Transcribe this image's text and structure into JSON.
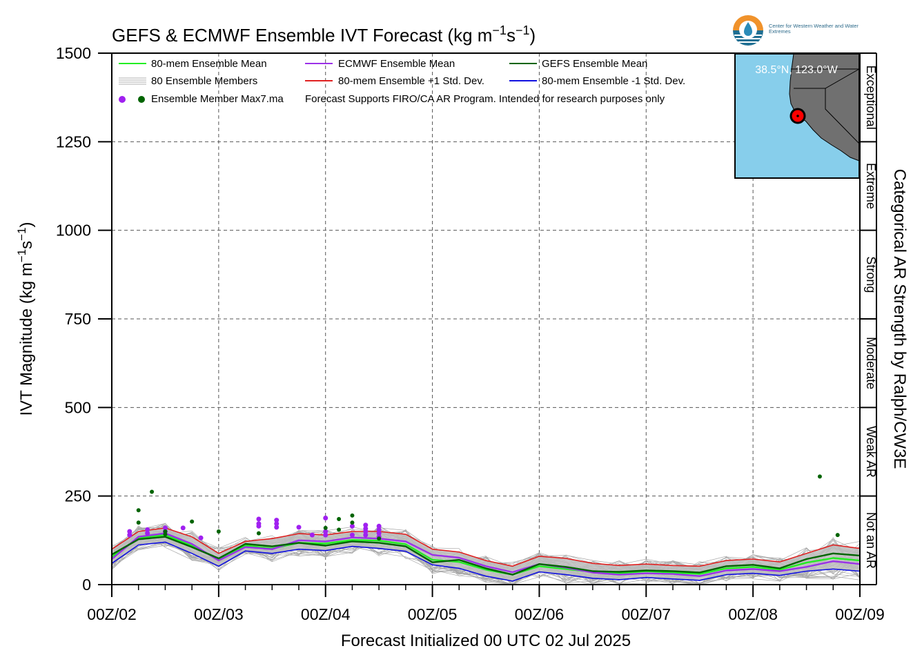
{
  "title_main": "GEFS & ECMWF Ensemble IVT Forecast (kg m",
  "title_sup1": "−1",
  "title_mid": "s",
  "title_sup2": "−1",
  "title_end": ")",
  "ylabel_main": "IVT Magnitude (kg m",
  "ylabel_sup1": "−1",
  "ylabel_mid": "s",
  "ylabel_sup2": "−1",
  "ylabel_end": ")",
  "xlabel": "Forecast Initialized 00 UTC 02 Jul 2025",
  "right_title": "Categorical AR Strength by Ralph/CW3E",
  "logo_org": "Center for Western Weather and Water Extremes",
  "inset": {
    "label": "38.5°N, 123.0°W",
    "colors": {
      "ocean": "#87ceeb",
      "land": "#707070",
      "marker": "#ff0000"
    }
  },
  "legend": {
    "ens_mean": "80-mem Ensemble Mean",
    "ecmwf_mean": "ECMWF Ensemble Mean",
    "gefs_mean": "GEFS Ensemble Mean",
    "members": "80 Ensemble Members",
    "plus_sd": "80-mem Ensemble +1 Std. Dev.",
    "minus_sd": "80-mem Ensemble -1 Std. Dev.",
    "max_label": "Ensemble Member Max7.ma",
    "note": "Forecast Supports FIRO/CA AR Program. Intended for research purposes only"
  },
  "categories": [
    "Not an AR",
    "Weak AR",
    "Moderate",
    "Strong",
    "Extreme",
    "Exceptional"
  ],
  "chart_data": {
    "type": "line",
    "title": "GEFS & ECMWF Ensemble IVT Forecast (kg m−1s−1)",
    "xlabel": "Forecast Initialized 00 UTC 02 Jul 2025",
    "ylabel": "IVT Magnitude (kg m−1s−1)",
    "ylim": [
      0,
      1500
    ],
    "yticks": [
      0,
      250,
      500,
      750,
      1000,
      1250,
      1500
    ],
    "xlim": [
      0,
      168
    ],
    "xticks": [
      0,
      24,
      48,
      72,
      96,
      120,
      144,
      168
    ],
    "xtick_labels": [
      "00Z/02",
      "00Z/03",
      "00Z/04",
      "00Z/05",
      "00Z/06",
      "00Z/07",
      "00Z/08",
      "00Z/09"
    ],
    "grid": true,
    "legend_position": "top-left",
    "colors": {
      "ens_mean": "#22ee22",
      "ecmwf_mean": "#9b30e8",
      "gefs_mean": "#006400",
      "plus_sd": "#e02020",
      "minus_sd": "#1010e0",
      "members": "#a8a8a8",
      "spread": "#bdbdbd",
      "ecmwf_max": "#a020f0",
      "gefs_max": "#006400"
    },
    "x": [
      0,
      6,
      12,
      18,
      24,
      30,
      36,
      42,
      48,
      54,
      60,
      66,
      72,
      78,
      84,
      90,
      96,
      102,
      108,
      114,
      120,
      126,
      132,
      138,
      144,
      150,
      156,
      162,
      168
    ],
    "series": [
      {
        "name": "80-mem Ensemble Mean",
        "key": "ens_mean",
        "values": [
          78,
          132,
          140,
          110,
          72,
          110,
          102,
          118,
          116,
          126,
          124,
          114,
          70,
          64,
          42,
          28,
          52,
          44,
          36,
          32,
          38,
          34,
          30,
          46,
          50,
          42,
          62,
          75,
          68
        ]
      },
      {
        "name": "ECMWF Ensemble Mean",
        "key": "ecmwf_mean",
        "values": [
          72,
          135,
          145,
          115,
          68,
          106,
          100,
          125,
          122,
          133,
          130,
          122,
          84,
          76,
          52,
          35,
          58,
          48,
          34,
          28,
          32,
          30,
          24,
          40,
          44,
          38,
          50,
          66,
          58
        ]
      },
      {
        "name": "GEFS Ensemble Mean",
        "key": "gefs_mean",
        "values": [
          85,
          128,
          135,
          106,
          74,
          115,
          108,
          118,
          110,
          122,
          118,
          108,
          63,
          70,
          46,
          28,
          58,
          50,
          38,
          36,
          40,
          38,
          34,
          52,
          56,
          46,
          72,
          88,
          82
        ]
      },
      {
        "name": "80-mem Ensemble +1 Std. Dev.",
        "key": "plus_sd",
        "values": [
          100,
          150,
          160,
          135,
          88,
          122,
          130,
          144,
          140,
          150,
          150,
          142,
          100,
          92,
          68,
          52,
          80,
          74,
          60,
          54,
          58,
          54,
          52,
          68,
          72,
          64,
          88,
          112,
          102
        ]
      },
      {
        "name": "80-mem Ensemble -1 Std. Dev.",
        "key": "minus_sd",
        "values": [
          60,
          112,
          120,
          88,
          52,
          95,
          88,
          100,
          96,
          108,
          102,
          94,
          56,
          46,
          24,
          10,
          36,
          28,
          18,
          14,
          20,
          16,
          12,
          28,
          32,
          26,
          38,
          44,
          38
        ]
      }
    ],
    "ecmwf_max_points": [
      {
        "x": 4,
        "y": 140
      },
      {
        "x": 4,
        "y": 150
      },
      {
        "x": 8,
        "y": 145
      },
      {
        "x": 8,
        "y": 155
      },
      {
        "x": 12,
        "y": 150
      },
      {
        "x": 12,
        "y": 160
      },
      {
        "x": 16,
        "y": 160
      },
      {
        "x": 20,
        "y": 132
      },
      {
        "x": 33,
        "y": 185
      },
      {
        "x": 33,
        "y": 172
      },
      {
        "x": 33,
        "y": 165
      },
      {
        "x": 37,
        "y": 182
      },
      {
        "x": 37,
        "y": 172
      },
      {
        "x": 37,
        "y": 162
      },
      {
        "x": 42,
        "y": 162
      },
      {
        "x": 45,
        "y": 140
      },
      {
        "x": 48,
        "y": 188
      },
      {
        "x": 48,
        "y": 150
      },
      {
        "x": 48,
        "y": 140
      },
      {
        "x": 54,
        "y": 165
      },
      {
        "x": 54,
        "y": 140
      },
      {
        "x": 57,
        "y": 168
      },
      {
        "x": 57,
        "y": 158
      },
      {
        "x": 57,
        "y": 150
      },
      {
        "x": 57,
        "y": 140
      },
      {
        "x": 60,
        "y": 165
      },
      {
        "x": 60,
        "y": 155
      },
      {
        "x": 60,
        "y": 145
      },
      {
        "x": 60,
        "y": 135
      }
    ],
    "gefs_max_points": [
      {
        "x": 6,
        "y": 210
      },
      {
        "x": 6,
        "y": 175
      },
      {
        "x": 9,
        "y": 262
      },
      {
        "x": 12,
        "y": 150
      },
      {
        "x": 12,
        "y": 142
      },
      {
        "x": 18,
        "y": 178
      },
      {
        "x": 24,
        "y": 150
      },
      {
        "x": 33,
        "y": 145
      },
      {
        "x": 48,
        "y": 160
      },
      {
        "x": 51,
        "y": 185
      },
      {
        "x": 51,
        "y": 155
      },
      {
        "x": 54,
        "y": 195
      },
      {
        "x": 54,
        "y": 175
      },
      {
        "x": 60,
        "y": 130
      },
      {
        "x": 159,
        "y": 305
      },
      {
        "x": 163,
        "y": 140
      }
    ]
  }
}
